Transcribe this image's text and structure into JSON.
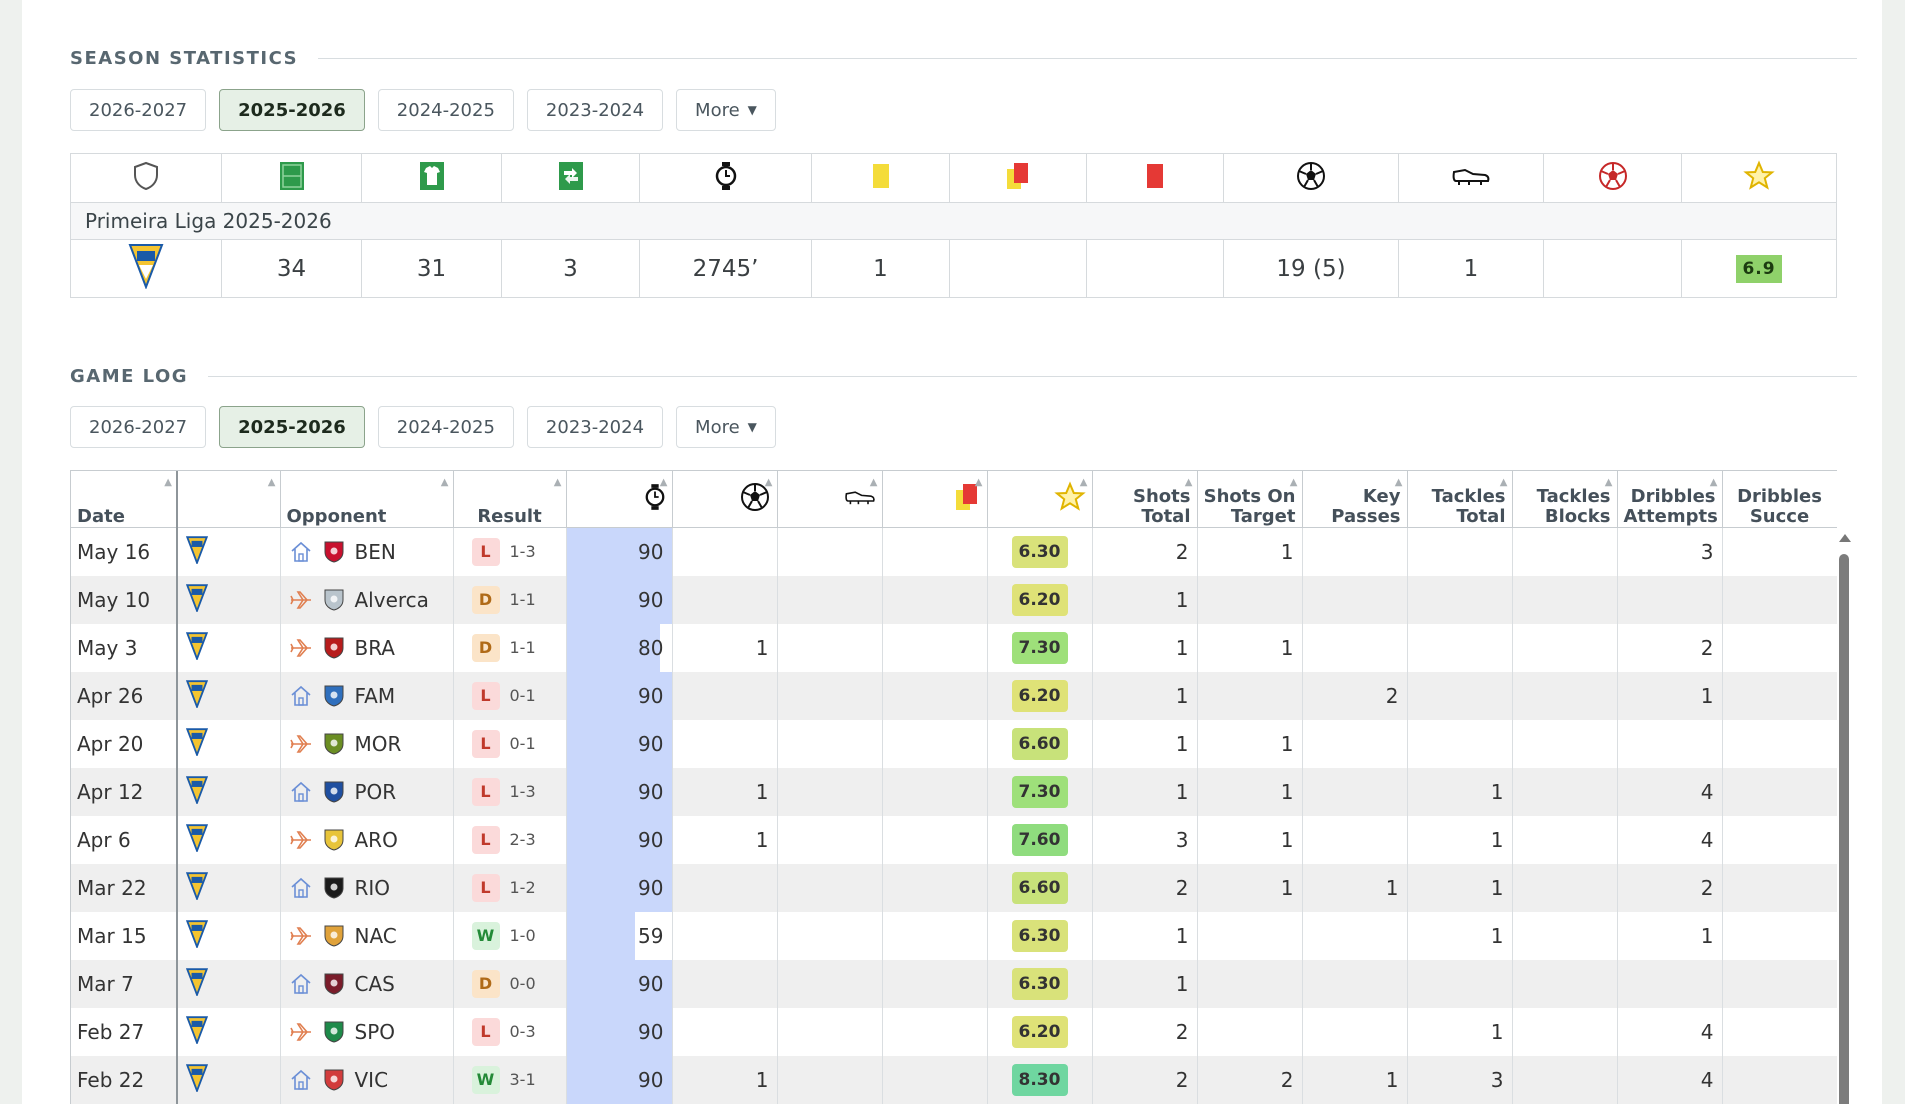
{
  "season_stats": {
    "title": "SEASON STATISTICS",
    "tabs": [
      "2026-2027",
      "2025-2026",
      "2024-2025",
      "2023-2024"
    ],
    "active_tab": 1,
    "more_label": "More",
    "icons": [
      "competition-shield-icon",
      "pitch-icon",
      "shirt-icon",
      "substitution-icon",
      "clock-icon",
      "yellow-card-icon",
      "second-yellow-icon",
      "red-card-icon",
      "goal-ball-icon",
      "assist-boot-icon",
      "ball-red-icon",
      "rating-star-icon"
    ],
    "league_label": "Primeira Liga 2025-2026",
    "values": [
      "34",
      "31",
      "3",
      "2745’",
      "1",
      "",
      "",
      "19 (5)",
      "1",
      "",
      "6.9"
    ]
  },
  "game_log": {
    "title": "GAME LOG",
    "tabs": [
      "2026-2027",
      "2025-2026",
      "2024-2025",
      "2023-2024"
    ],
    "active_tab": 1,
    "more_label": "More",
    "headers": {
      "date": "Date",
      "opponent": "Opponent",
      "result": "Result",
      "shots_total": [
        "Shots",
        "Total"
      ],
      "shots_on_target": [
        "Shots On",
        "Target"
      ],
      "key_passes": [
        "Key",
        "Passes"
      ],
      "tackles_total": [
        "Tackles",
        "Total"
      ],
      "tackles_blocks": [
        "Tackles",
        "Blocks"
      ],
      "dribbles_attempts": [
        "Dribbles",
        "Attempts"
      ],
      "dribbles_succ": [
        "Dribbles",
        "Succe"
      ]
    },
    "rows": [
      {
        "date": "May 16",
        "venue": "home",
        "team": "BEN",
        "crest": "#c8102e",
        "result": "L",
        "score": "1-3",
        "min": 90,
        "goals": "",
        "rating": "6.30",
        "rcolor": "#d9e27a",
        "st": "2",
        "sot": "1",
        "kp": "",
        "tt": "",
        "tb": "",
        "da": "3"
      },
      {
        "date": "May 10",
        "venue": "away",
        "team": "Alverca",
        "crest": "#b9c4cc",
        "result": "D",
        "score": "1-1",
        "min": 90,
        "goals": "",
        "rating": "6.20",
        "rcolor": "#dfe277",
        "st": "1",
        "sot": "",
        "kp": "",
        "tt": "",
        "tb": "",
        "da": ""
      },
      {
        "date": "May 3",
        "venue": "away",
        "team": "BRA",
        "crest": "#b71c1c",
        "result": "D",
        "score": "1-1",
        "min": 80,
        "goals": "1",
        "rating": "7.30",
        "rcolor": "#9ee07a",
        "st": "1",
        "sot": "1",
        "kp": "",
        "tt": "",
        "tb": "",
        "da": "2"
      },
      {
        "date": "Apr 26",
        "venue": "home",
        "team": "FAM",
        "crest": "#2f6fbd",
        "result": "L",
        "score": "0-1",
        "min": 90,
        "goals": "",
        "rating": "6.20",
        "rcolor": "#dfe277",
        "st": "1",
        "sot": "",
        "kp": "2",
        "tt": "",
        "tb": "",
        "da": "1"
      },
      {
        "date": "Apr 20",
        "venue": "away",
        "team": "MOR",
        "crest": "#6b8e23",
        "result": "L",
        "score": "0-1",
        "min": 90,
        "goals": "",
        "rating": "6.60",
        "rcolor": "#c8e27a",
        "st": "1",
        "sot": "1",
        "kp": "",
        "tt": "",
        "tb": "",
        "da": ""
      },
      {
        "date": "Apr 12",
        "venue": "home",
        "team": "POR",
        "crest": "#1f4fa0",
        "result": "L",
        "score": "1-3",
        "min": 90,
        "goals": "1",
        "rating": "7.30",
        "rcolor": "#9ee07a",
        "st": "1",
        "sot": "1",
        "kp": "",
        "tt": "1",
        "tb": "",
        "da": "4"
      },
      {
        "date": "Apr 6",
        "venue": "away",
        "team": "ARO",
        "crest": "#e8c43a",
        "result": "L",
        "score": "2-3",
        "min": 90,
        "goals": "1",
        "rating": "7.60",
        "rcolor": "#8fdc7e",
        "st": "3",
        "sot": "1",
        "kp": "",
        "tt": "1",
        "tb": "",
        "da": "4"
      },
      {
        "date": "Mar 22",
        "venue": "home",
        "team": "RIO",
        "crest": "#1b1b1b",
        "result": "L",
        "score": "1-2",
        "min": 90,
        "goals": "",
        "rating": "6.60",
        "rcolor": "#c8e27a",
        "st": "2",
        "sot": "1",
        "kp": "1",
        "tt": "1",
        "tb": "",
        "da": "2"
      },
      {
        "date": "Mar 15",
        "venue": "away",
        "team": "NAC",
        "crest": "#e0a23a",
        "result": "W",
        "score": "1-0",
        "min": 59,
        "goals": "",
        "rating": "6.30",
        "rcolor": "#d9e27a",
        "st": "1",
        "sot": "",
        "kp": "",
        "tt": "1",
        "tb": "",
        "da": "1"
      },
      {
        "date": "Mar 7",
        "venue": "home",
        "team": "CAS",
        "crest": "#7a1c2a",
        "result": "D",
        "score": "0-0",
        "min": 90,
        "goals": "",
        "rating": "6.30",
        "rcolor": "#d9e27a",
        "st": "1",
        "sot": "",
        "kp": "",
        "tt": "",
        "tb": "",
        "da": ""
      },
      {
        "date": "Feb 27",
        "venue": "away",
        "team": "SPO",
        "crest": "#1e8a4a",
        "result": "L",
        "score": "0-3",
        "min": 90,
        "goals": "",
        "rating": "6.20",
        "rcolor": "#dfe277",
        "st": "2",
        "sot": "",
        "kp": "",
        "tt": "1",
        "tb": "",
        "da": "4"
      },
      {
        "date": "Feb 22",
        "venue": "home",
        "team": "VIC",
        "crest": "#d23c3c",
        "result": "W",
        "score": "3-1",
        "min": 90,
        "goals": "1",
        "rating": "8.30",
        "rcolor": "#6fd6a0",
        "st": "2",
        "sot": "2",
        "kp": "1",
        "tt": "3",
        "tb": "",
        "da": "4"
      }
    ]
  }
}
